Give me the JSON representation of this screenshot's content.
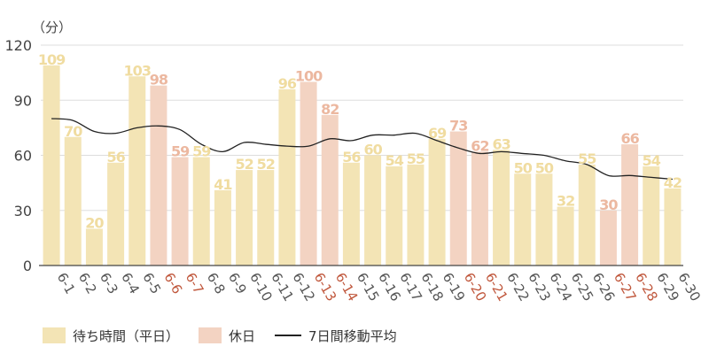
{
  "chart_data": {
    "type": "bar",
    "unit_label": "（分）",
    "categories": [
      "6-1",
      "6-2",
      "6-3",
      "6-4",
      "6-5",
      "6-6",
      "6-7",
      "6-8",
      "6-9",
      "6-10",
      "6-11",
      "6-12",
      "6-13",
      "6-14",
      "6-15",
      "6-16",
      "6-17",
      "6-18",
      "6-19",
      "6-20",
      "6-21",
      "6-22",
      "6-23",
      "6-24",
      "6-25",
      "6-26",
      "6-27",
      "6-28",
      "6-29",
      "6-30"
    ],
    "values": [
      109,
      70,
      20,
      56,
      103,
      98,
      59,
      59,
      41,
      52,
      52,
      96,
      100,
      82,
      56,
      60,
      54,
      55,
      69,
      73,
      62,
      63,
      50,
      50,
      32,
      55,
      30,
      66,
      54,
      42
    ],
    "holidays": [
      "6-6",
      "6-7",
      "6-13",
      "6-14",
      "6-20",
      "6-21",
      "6-27",
      "6-28"
    ],
    "moving_average": [
      80,
      79,
      73,
      72,
      75,
      76,
      74,
      66,
      62,
      67,
      66,
      65,
      65,
      69,
      68,
      71,
      71,
      72,
      68,
      64,
      61,
      62,
      61,
      60,
      57,
      55,
      49,
      49,
      48,
      47
    ],
    "y_ticks": [
      0,
      30,
      60,
      90,
      120
    ],
    "ylim": [
      0,
      120
    ],
    "grid": true,
    "legend": [
      {
        "label": "待ち時間（平日）",
        "type": "bar",
        "color": "#f3e4b5"
      },
      {
        "label": "休日",
        "type": "bar",
        "color": "#f3d3c2"
      },
      {
        "label": "7日間移動平均",
        "type": "line",
        "color": "#222222"
      }
    ],
    "colors": {
      "weekday_bar": "#f3e4b5",
      "holiday_bar": "#f3d3c2",
      "weekday_value_label": "#f0dca0",
      "holiday_value_label": "#ecb8a0",
      "weekday_tick": "#555555",
      "holiday_tick": "#c0573c",
      "average_line": "#222222",
      "grid": "#dddddd"
    }
  }
}
